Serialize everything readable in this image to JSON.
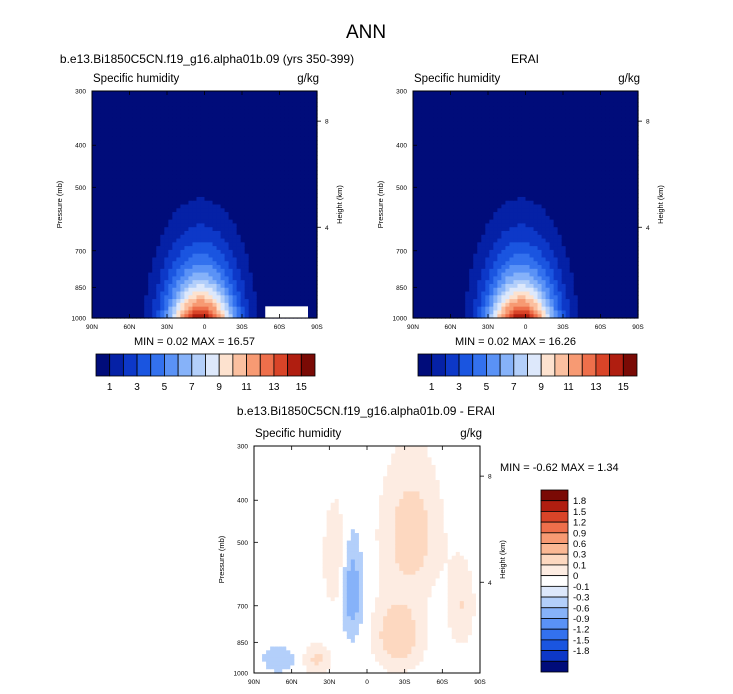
{
  "figure": {
    "title": "ANN"
  },
  "chart_data": [
    {
      "type": "heatmap",
      "panel_title": "b.e13.Bi1850C5CN.f19_g16.alpha01b.09 (yrs 350-399)",
      "variable": "Specific humidity",
      "units": "g/kg",
      "ylabel": "Pressure (mb)",
      "ylabel_right": "Height (km)",
      "xticks": [
        "90N",
        "60N",
        "30N",
        "0",
        "30S",
        "60S",
        "90S"
      ],
      "yticks": [
        "300",
        "400",
        "500",
        "700",
        "850",
        "1000"
      ],
      "yticks_right": [
        "8",
        "4"
      ],
      "stats": "MIN =  0.02  MAX = 16.57",
      "min": 0.02,
      "max": 16.57,
      "levels": [
        1,
        2,
        3,
        4,
        5,
        6,
        7,
        8,
        9,
        10,
        11,
        12,
        13,
        14,
        15
      ],
      "colorbar_labels": [
        "1",
        "3",
        "5",
        "7",
        "9",
        "11",
        "13",
        "15"
      ]
    },
    {
      "type": "heatmap",
      "panel_title": "ERAI",
      "variable": "Specific humidity",
      "units": "g/kg",
      "ylabel": "Pressure (mb)",
      "ylabel_right": "Height (km)",
      "xticks": [
        "90N",
        "60N",
        "30N",
        "0",
        "30S",
        "60S",
        "90S"
      ],
      "yticks": [
        "300",
        "400",
        "500",
        "700",
        "850",
        "1000"
      ],
      "yticks_right": [
        "8",
        "4"
      ],
      "stats": "MIN =  0.02  MAX = 16.26",
      "min": 0.02,
      "max": 16.26,
      "levels": [
        1,
        2,
        3,
        4,
        5,
        6,
        7,
        8,
        9,
        10,
        11,
        12,
        13,
        14,
        15
      ],
      "colorbar_labels": [
        "1",
        "3",
        "5",
        "7",
        "9",
        "11",
        "13",
        "15"
      ]
    },
    {
      "type": "heatmap",
      "panel_title": "b.e13.Bi1850C5CN.f19_g16.alpha01b.09 - ERAI",
      "variable": "Specific humidity",
      "units": "g/kg",
      "ylabel": "Pressure (mb)",
      "ylabel_right": "Height (km)",
      "xticks": [
        "90N",
        "60N",
        "30N",
        "0",
        "30S",
        "60S",
        "90S"
      ],
      "yticks": [
        "300",
        "400",
        "500",
        "700",
        "850",
        "1000"
      ],
      "yticks_right": [
        "8",
        "4"
      ],
      "stats": "MIN =  -0.62  MAX =  1.34",
      "min": -0.62,
      "max": 1.34,
      "colorbar_labels": [
        "1.8",
        "1.5",
        "1.2",
        "0.9",
        "0.6",
        "0.3",
        "0.1",
        "0",
        "-0.1",
        "-0.3",
        "-0.6",
        "-0.9",
        "-1.2",
        "-1.5",
        "-1.8"
      ]
    }
  ],
  "colors": {
    "sequential": [
      "#000c7a",
      "#0521a6",
      "#0d38c8",
      "#1a55e0",
      "#3371ee",
      "#5a92f6",
      "#86b2f9",
      "#b3cffa",
      "#dde8fb",
      "#fde2cf",
      "#fbc0a0",
      "#f79a73",
      "#ee6f4b",
      "#d94428",
      "#b01e10",
      "#7a0a05"
    ],
    "diverging": [
      "#7a0a05",
      "#b01e10",
      "#d94428",
      "#ee6f4b",
      "#f79a73",
      "#fbb894",
      "#fdd8c0",
      "#fdece2",
      "#ffffff",
      "#dde8fb",
      "#b3cffa",
      "#86b2f9",
      "#5a92f6",
      "#3371ee",
      "#1a55e0",
      "#0d38c8",
      "#000c7a"
    ]
  }
}
